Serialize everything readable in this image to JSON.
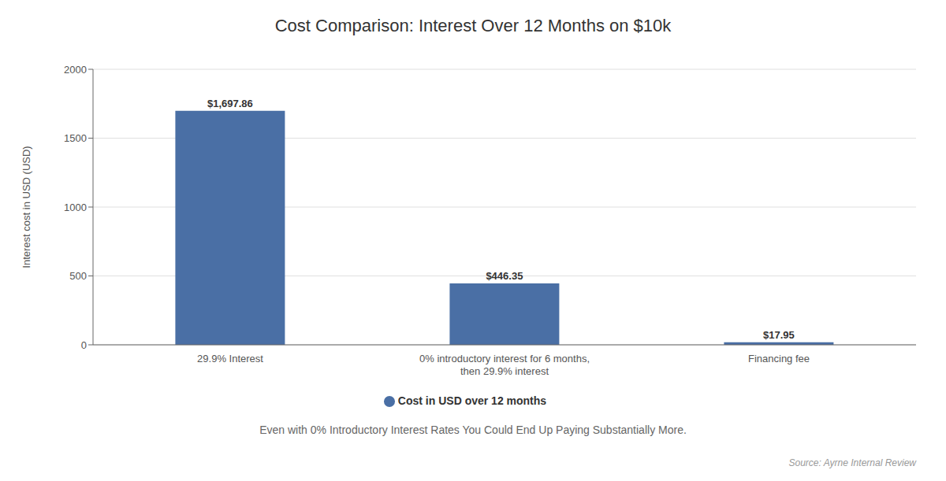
{
  "chart_data": {
    "type": "bar",
    "title": "Cost Comparison: Interest Over 12 Months on $10k",
    "subtitle": "Even with 0% Introductory Interest Rates You Could End Up Paying Substantially More.",
    "source": "Source: Ayrne Internal Review",
    "categories": [
      "29.9% Interest",
      "0% introductory interest for 6 months,\nthen 29.9% interest",
      "Financing fee"
    ],
    "series": [
      {
        "name": "Cost in USD over 12 months",
        "color": "#4a6fa5",
        "values": [
          1697.86,
          446.35,
          17.95
        ],
        "value_labels": [
          "$1,697.86",
          "$446.35",
          "$17.95"
        ]
      }
    ],
    "ylabel": "Interest cost in USD (USD)",
    "ylim": [
      0,
      2000
    ],
    "yticks": [
      0,
      500,
      1000,
      1500,
      2000
    ],
    "grid": true,
    "legend": "bottom",
    "data_labels": true
  }
}
